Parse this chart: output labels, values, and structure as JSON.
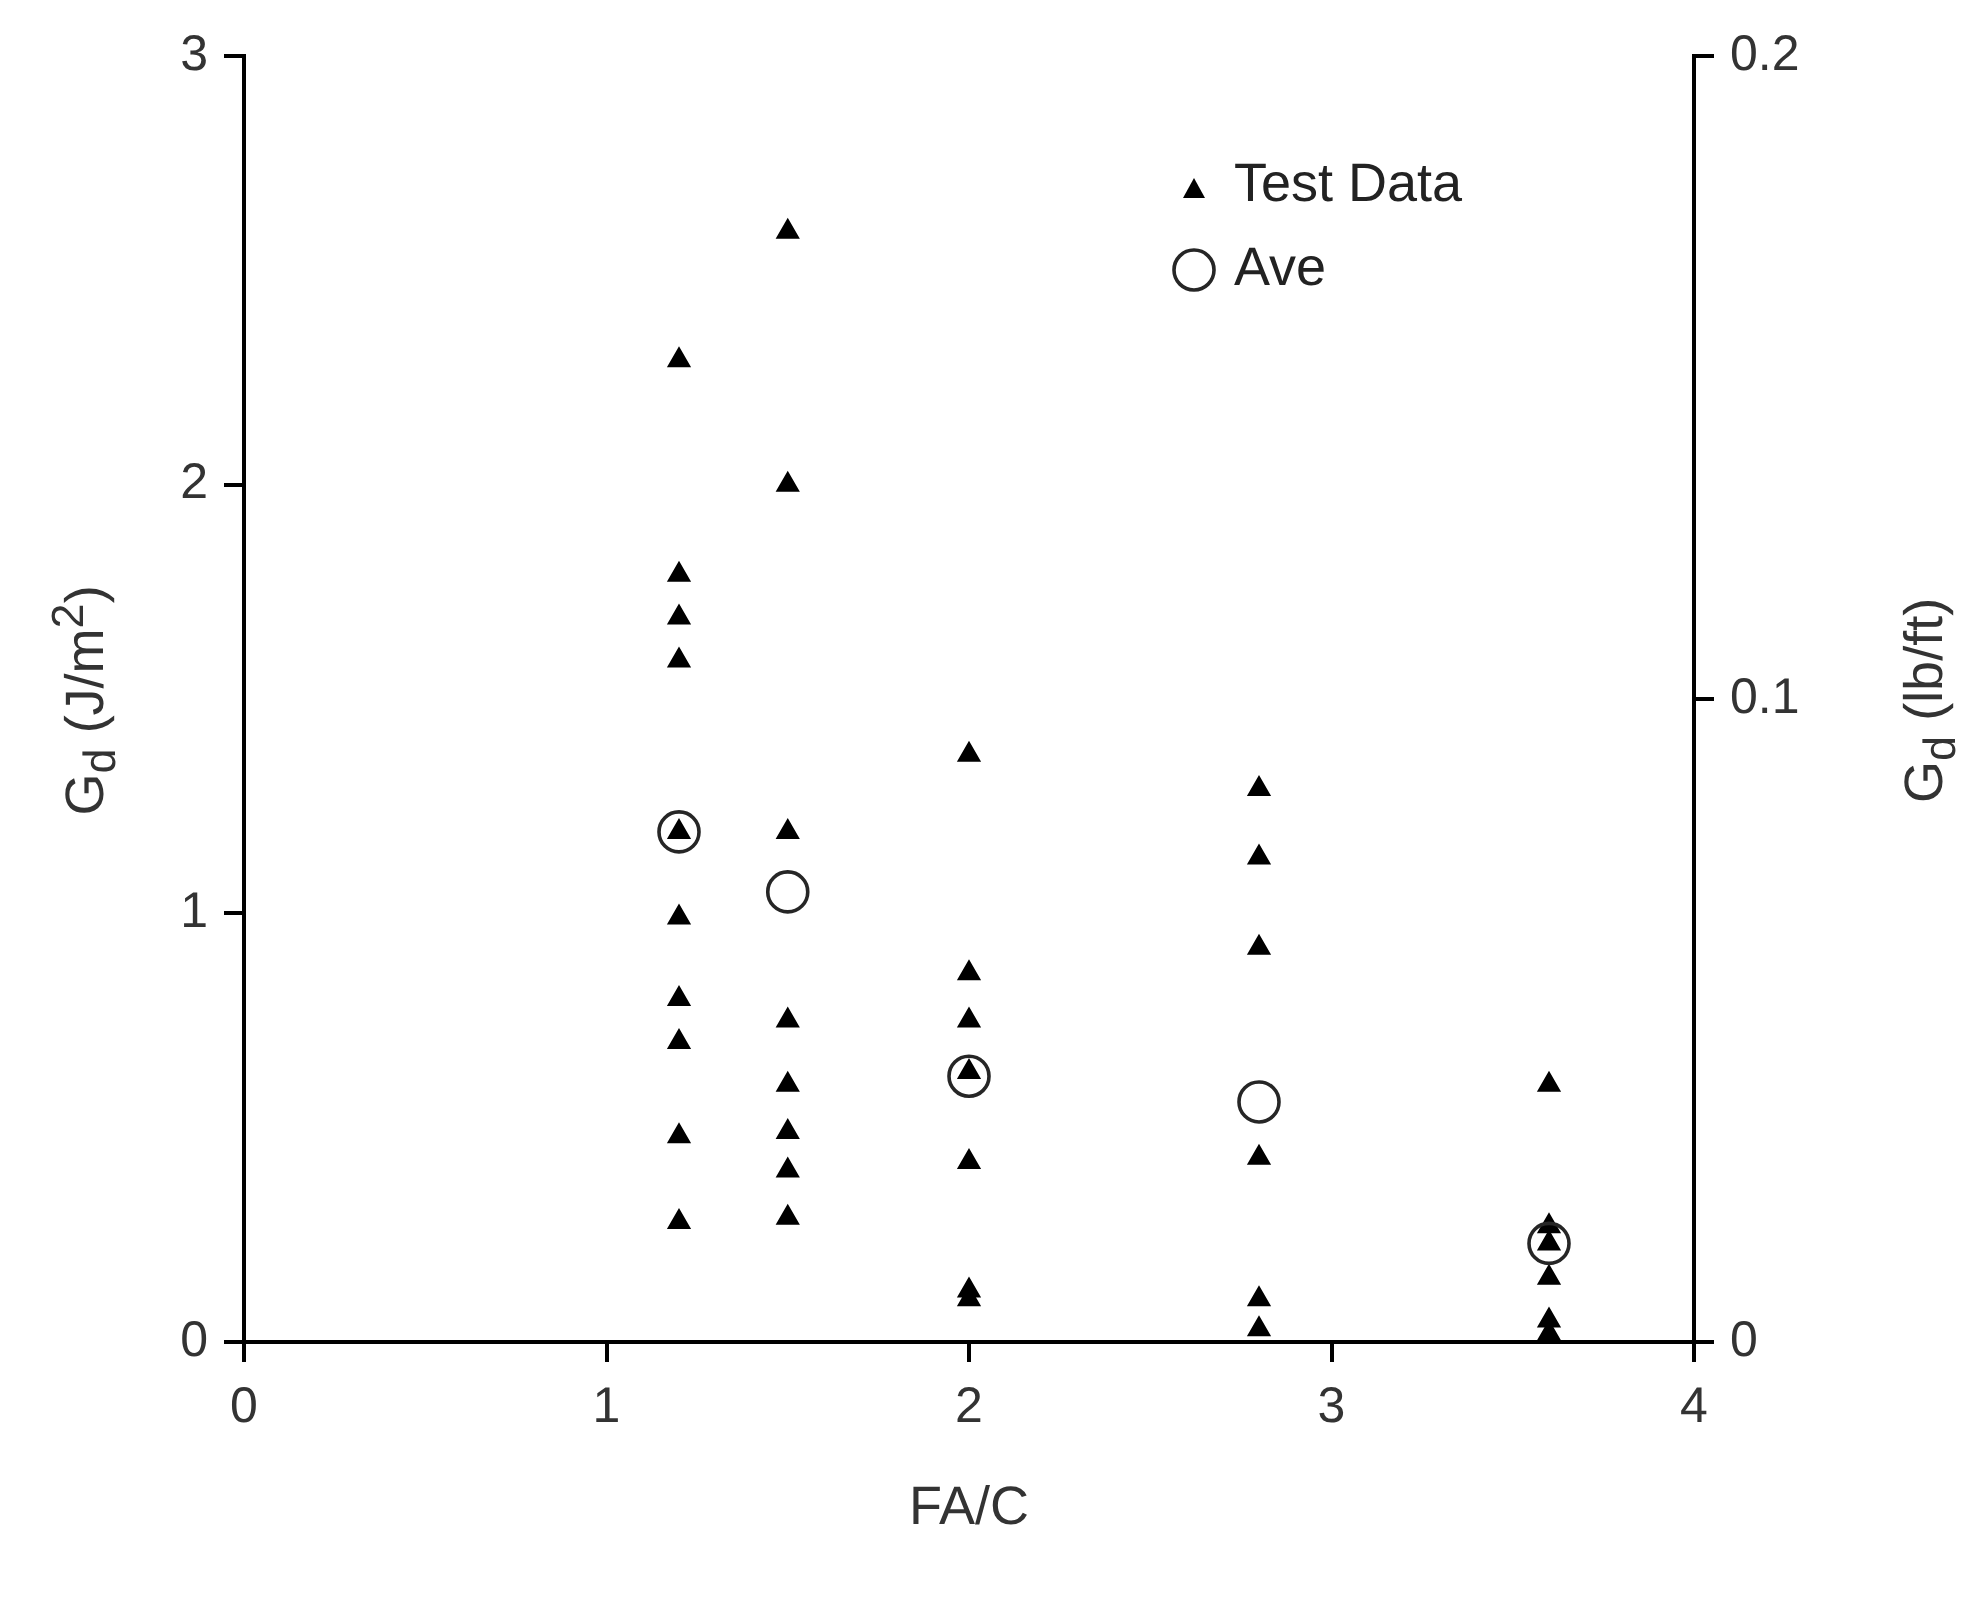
{
  "chart_data": {
    "type": "scatter",
    "xlabel": "FA/C",
    "ylabel": "G$_{d}$ (J/m$^{2}$)",
    "y2label": "G$_{d}$ (lb/ft)",
    "xlim": [
      0,
      4
    ],
    "xticks": [
      0,
      1,
      2,
      3,
      4
    ],
    "ylim": [
      0,
      3
    ],
    "yticks": [
      0,
      1,
      2,
      3
    ],
    "y2lim": [
      0,
      0.2
    ],
    "y2ticks": [
      0,
      0.1,
      0.2
    ],
    "grid": false,
    "legend": "top right",
    "series": [
      {
        "name": "Test Data",
        "color": "#000000",
        "marker": "triangle",
        "x": [
          1.2,
          1.2,
          1.2,
          1.2,
          1.2,
          1.2,
          1.2,
          1.2,
          1.2,
          1.2,
          1.5,
          1.5,
          1.5,
          1.5,
          1.5,
          1.5,
          1.5,
          1.5,
          2,
          2,
          2,
          2,
          2,
          2,
          2,
          2.8,
          2.8,
          2.8,
          2.8,
          2.8,
          2.8,
          3.6,
          3.6,
          3.6,
          3.6,
          3.6,
          3.6
        ],
        "values": [
          2.29,
          1.79,
          1.69,
          1.59,
          1.19,
          0.99,
          0.8,
          0.7,
          0.48,
          0.28,
          2.59,
          2.0,
          1.19,
          0.75,
          0.6,
          0.49,
          0.4,
          0.29,
          1.37,
          0.86,
          0.75,
          0.63,
          0.42,
          0.12,
          0.1,
          1.29,
          1.13,
          0.92,
          0.43,
          0.1,
          0.03,
          0.6,
          0.27,
          0.23,
          0.15,
          0.05,
          0.02
        ]
      },
      {
        "name": "Ave",
        "color": "#262626",
        "marker": "circle",
        "x": [
          1.2,
          1.5,
          2,
          2.8,
          3.6
        ],
        "values": [
          1.19,
          1.05,
          0.62,
          0.56,
          0.23
        ]
      }
    ]
  }
}
